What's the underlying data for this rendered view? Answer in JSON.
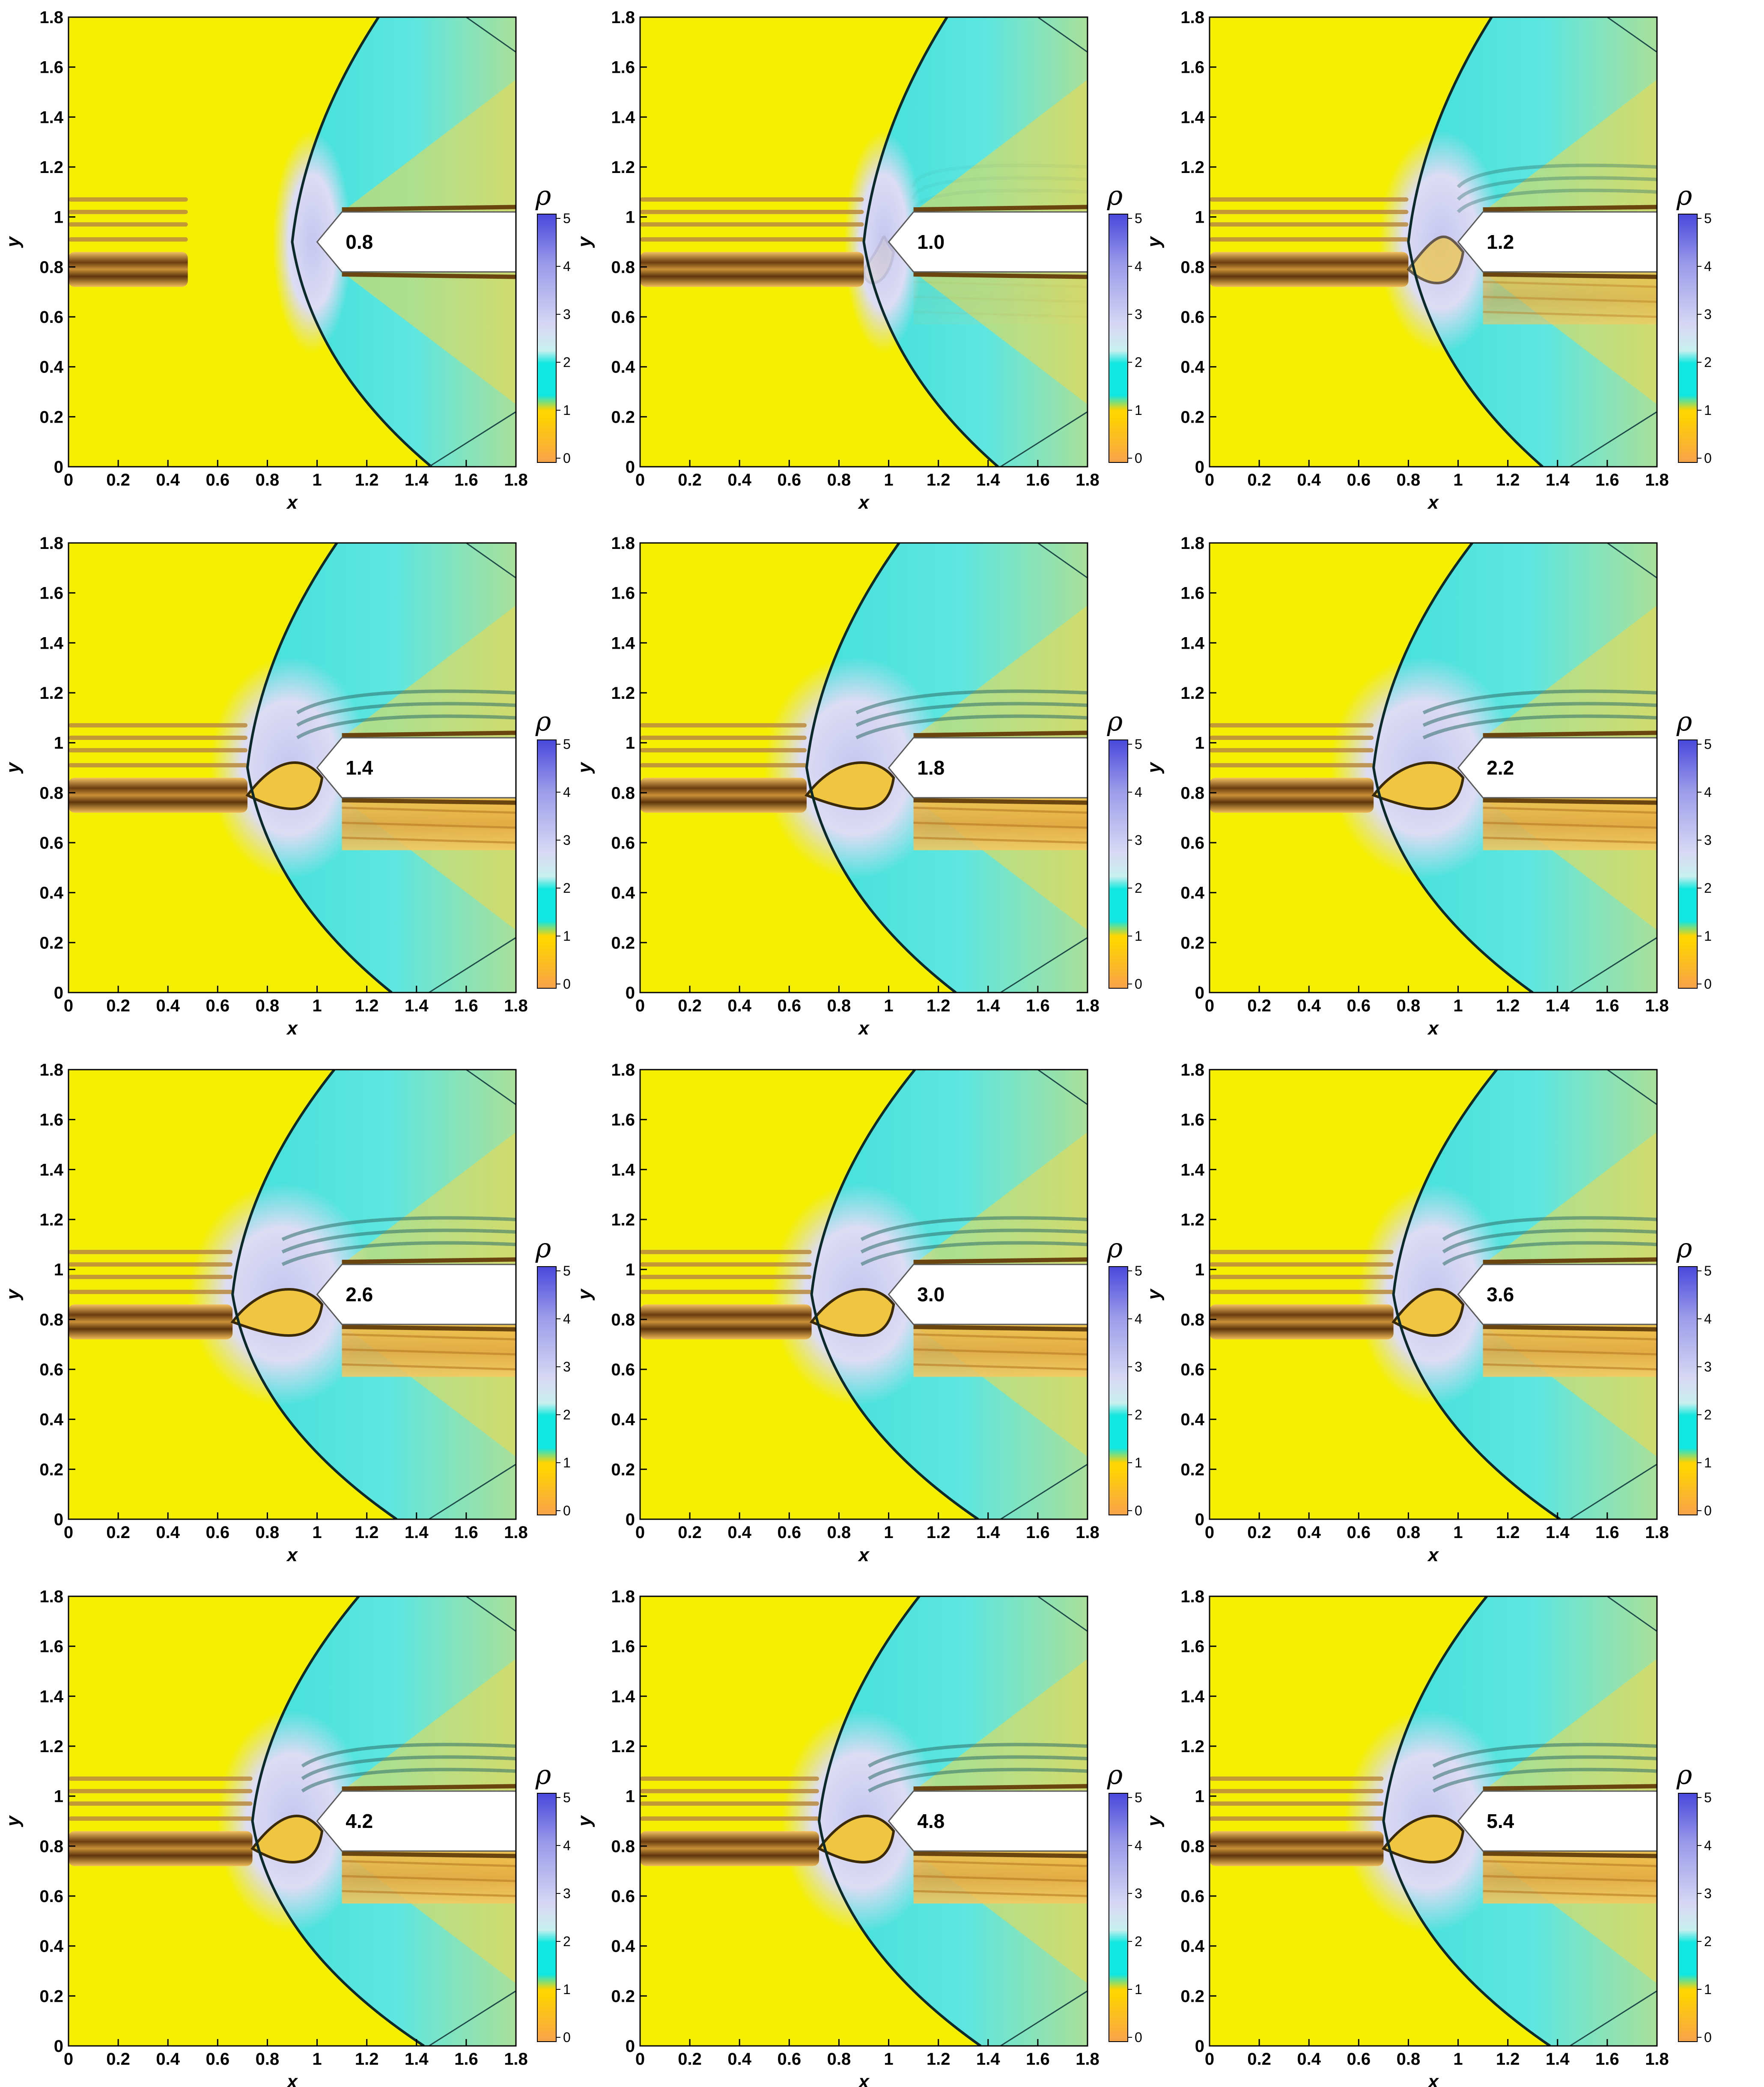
{
  "chart_data": {
    "type": "heatmap",
    "layout": {
      "rows": 4,
      "cols": 3
    },
    "xlabel": "x",
    "ylabel": "y",
    "xlim": [
      0,
      1.8
    ],
    "ylim": [
      0,
      1.8
    ],
    "xticks": [
      "0",
      "0.2",
      "0.4",
      "0.6",
      "0.8",
      "1",
      "1.2",
      "1.4",
      "1.6",
      "1.8"
    ],
    "yticks": [
      "0",
      "0.2",
      "0.4",
      "0.6",
      "0.8",
      "1",
      "1.2",
      "1.4",
      "1.6",
      "1.8"
    ],
    "colorbar": {
      "label": "ρ",
      "range": [
        0,
        5
      ],
      "ticks": [
        "0",
        "1",
        "2",
        "3",
        "4",
        "5"
      ],
      "colors": [
        "#f8a24a",
        "#ffd400",
        "#12e6e0",
        "#d6d6f4",
        "#5a5ae0"
      ]
    },
    "colors": {
      "freestream": "#f4ef00",
      "post_shock": "#4fe5df",
      "stagnation": "#d8d8f2",
      "jet_dark": "#7a4a17",
      "jet_light": "#e8b04a",
      "body": "#ffffff",
      "shock": "#0d2a2a"
    },
    "body": {
      "nose_x": 1.0,
      "cone_x": 1.1,
      "x_end": 1.8,
      "y_bottom": 0.78,
      "y_top": 1.02,
      "y_tip": 0.9
    },
    "panels": [
      {
        "time": "0.8",
        "standoff_x": 0.9,
        "bottom_x": 1.46,
        "jet_end": 0.48,
        "interact": 0
      },
      {
        "time": "1.0",
        "standoff_x": 0.9,
        "bottom_x": 1.44,
        "jet_end": 0.9,
        "interact": 0.1
      },
      {
        "time": "1.2",
        "standoff_x": 0.8,
        "bottom_x": 1.34,
        "jet_end": 0.8,
        "interact": 0.7
      },
      {
        "time": "1.4",
        "standoff_x": 0.72,
        "bottom_x": 1.3,
        "jet_end": 0.72,
        "interact": 1
      },
      {
        "time": "1.8",
        "standoff_x": 0.67,
        "bottom_x": 1.27,
        "jet_end": 0.67,
        "interact": 1
      },
      {
        "time": "2.2",
        "standoff_x": 0.66,
        "bottom_x": 1.3,
        "jet_end": 0.66,
        "interact": 1
      },
      {
        "time": "2.6",
        "standoff_x": 0.66,
        "bottom_x": 1.32,
        "jet_end": 0.66,
        "interact": 1
      },
      {
        "time": "3.0",
        "standoff_x": 0.69,
        "bottom_x": 1.36,
        "jet_end": 0.69,
        "interact": 1
      },
      {
        "time": "3.6",
        "standoff_x": 0.74,
        "bottom_x": 1.41,
        "jet_end": 0.74,
        "interact": 1
      },
      {
        "time": "4.2",
        "standoff_x": 0.74,
        "bottom_x": 1.43,
        "jet_end": 0.74,
        "interact": 1
      },
      {
        "time": "4.8",
        "standoff_x": 0.72,
        "bottom_x": 1.37,
        "jet_end": 0.72,
        "interact": 1
      },
      {
        "time": "5.4",
        "standoff_x": 0.7,
        "bottom_x": 1.37,
        "jet_end": 0.7,
        "interact": 1
      }
    ]
  }
}
